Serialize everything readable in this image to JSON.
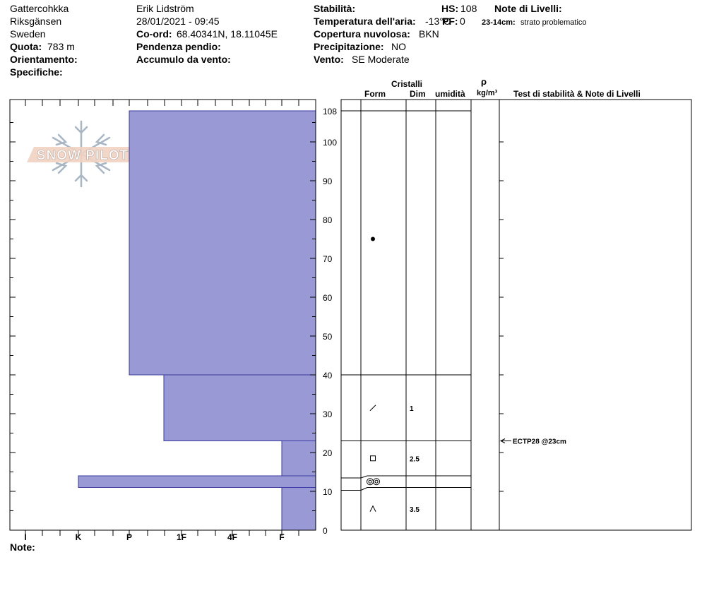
{
  "header": {
    "location": "Gattercohkka",
    "area": "Riksgänsen",
    "country": "Sweden",
    "elevation_label": "Quota:",
    "elevation_value": "783 m",
    "aspect_label": "Orientamento:",
    "specifics_label": "Specifiche:",
    "observer": "Erik Lidström",
    "datetime": "28/01/2021 - 09:45",
    "coord_label": "Co-ord:",
    "coord_value": "68.40341N, 18.11045E",
    "slope_label": "Pendenza pendio:",
    "wind_loading_label": "Accumulo da vento:",
    "stability_label": "Stabilità:",
    "air_temp_label": "Temperatura dell'aria:",
    "air_temp_value": "-13°C",
    "cloud_label": "Copertura nuvolosa:",
    "cloud_value": "BKN",
    "precip_label": "Precipitazione:",
    "precip_value": "NO",
    "wind_label": "Vento:",
    "wind_value": "SE Moderate",
    "hs_label": "HS:",
    "hs_value": "108",
    "pf_label": "PF:",
    "pf_value": "0",
    "layer_notes_label": "Note di Livelli:",
    "layer_note_range": "23-14cm:",
    "layer_note_text": "strato problematico"
  },
  "logo_text": "SNOW PILOT",
  "notes_label": "Note:",
  "table_headers": {
    "crystals": "Cristalli",
    "form": "Form",
    "size": "Dim",
    "moisture": "umidità",
    "density_symbol": "ρ",
    "density_unit": "kg/m³",
    "tests": "Test di stabilità & Note di Livelli"
  },
  "test_result": "ECTP28 @23cm",
  "colors": {
    "layer_fill": "#9999d6",
    "layer_stroke": "#3a3aa0",
    "axis": "#000000"
  },
  "chart_data": {
    "type": "bar",
    "hardness_ticks": [
      "I",
      "K",
      "P",
      "1F",
      "4F",
      "F"
    ],
    "y_ticks": [
      0,
      10,
      20,
      30,
      40,
      50,
      60,
      70,
      80,
      90,
      100,
      108
    ],
    "ylim": [
      0,
      108
    ],
    "layers": [
      {
        "top": 108,
        "bottom": 40,
        "hardness": "P",
        "form": "round-dot",
        "size": ""
      },
      {
        "top": 40,
        "bottom": 23,
        "hardness": "P-1F",
        "form": "slash",
        "size": "1"
      },
      {
        "top": 23,
        "bottom": 14,
        "hardness": "F",
        "form": "square",
        "size": "2.5"
      },
      {
        "top": 14,
        "bottom": 11,
        "hardness": "K",
        "form": "double-ring",
        "size": ""
      },
      {
        "top": 11,
        "bottom": 0,
        "hardness": "F",
        "form": "caret",
        "size": "3.5"
      }
    ]
  }
}
